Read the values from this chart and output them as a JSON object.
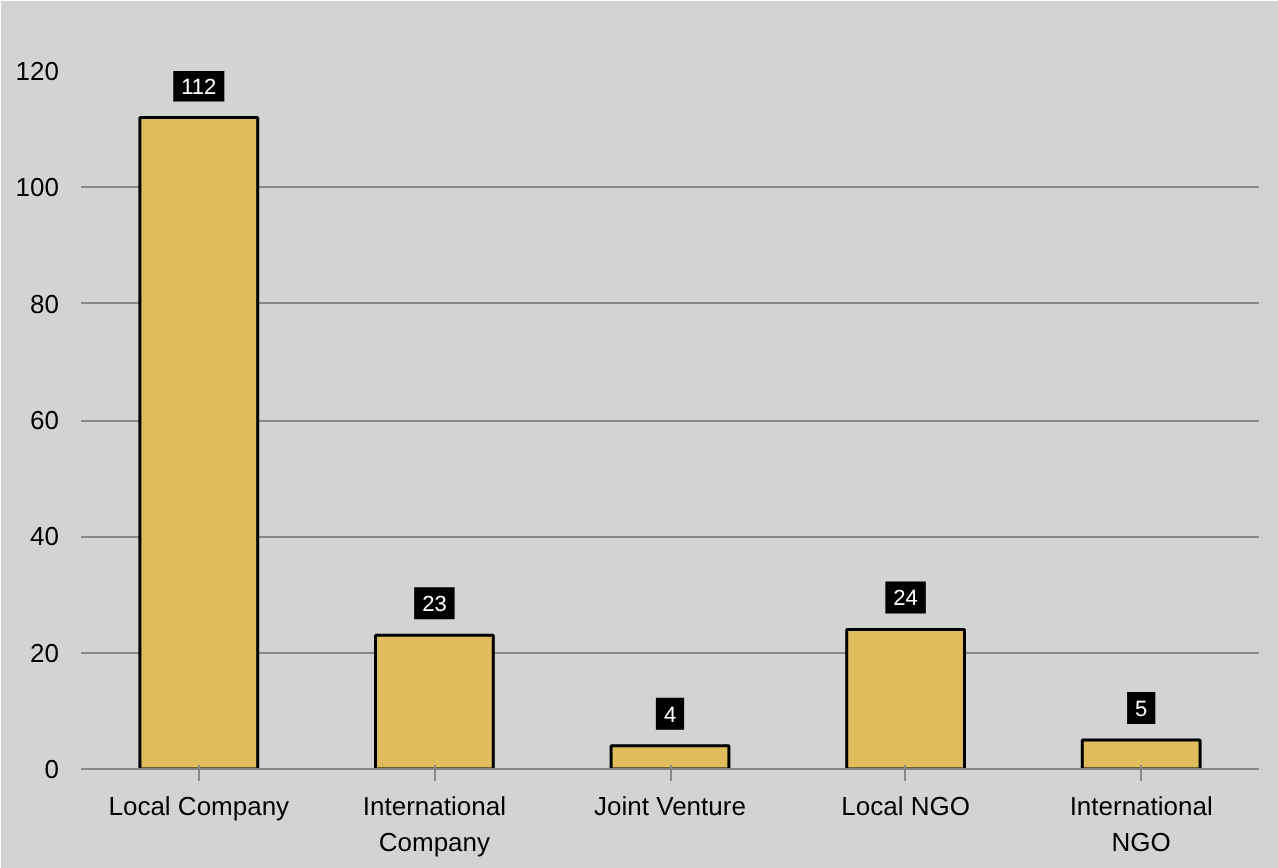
{
  "chart_data": {
    "type": "bar",
    "categories": [
      "Local Company",
      "International Company",
      "Joint Venture",
      "Local NGO",
      "International NGO"
    ],
    "values": [
      112,
      23,
      4,
      24,
      5
    ],
    "color": "#e0bd5c",
    "ylim": [
      0,
      120
    ],
    "yticks": [
      0,
      20,
      40,
      60,
      80,
      100,
      120
    ],
    "grid": "y",
    "data_labels": true
  }
}
